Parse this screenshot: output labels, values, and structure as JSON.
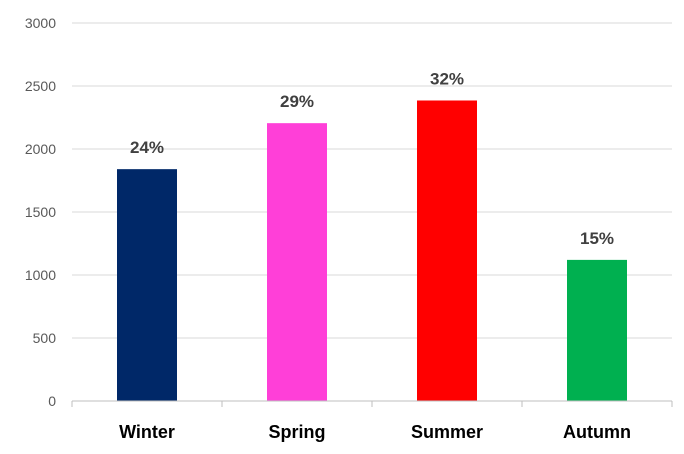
{
  "chart_data": {
    "type": "bar",
    "categories": [
      "Winter",
      "Spring",
      "Summer",
      "Autumn"
    ],
    "values": [
      1840,
      2205,
      2385,
      1120
    ],
    "data_labels": [
      "24%",
      "29%",
      "32%",
      "15%"
    ],
    "colors": [
      "#002868",
      "#ff3fd8",
      "#ff0000",
      "#00b050"
    ],
    "yticks": [
      "0",
      "500",
      "1000",
      "1500",
      "2000",
      "2500",
      "3000"
    ],
    "ylim": [
      0,
      3000
    ],
    "grid": true,
    "title": "",
    "xlabel": "",
    "ylabel": ""
  }
}
